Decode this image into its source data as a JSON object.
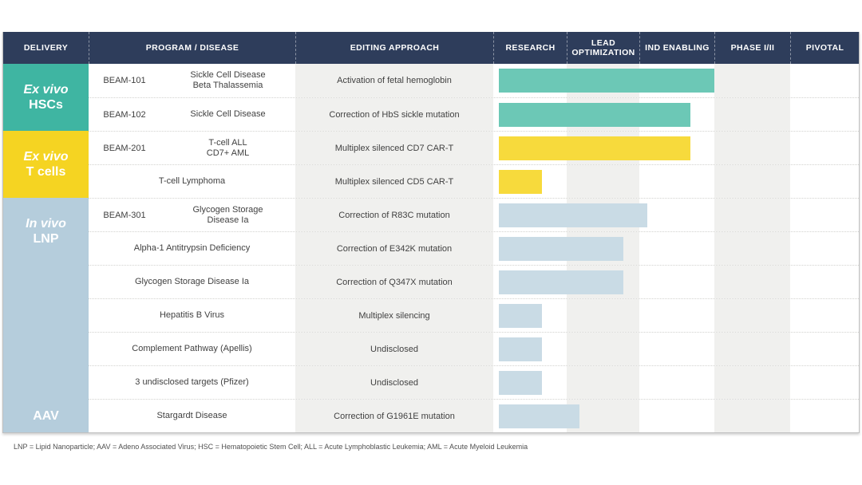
{
  "header": {
    "columns": [
      {
        "key": "delivery",
        "label": "DELIVERY"
      },
      {
        "key": "program-disease",
        "label": "PROGRAM / DISEASE"
      },
      {
        "key": "editing-approach",
        "label": "EDITING APPROACH"
      },
      {
        "key": "research",
        "label": "RESEARCH"
      },
      {
        "key": "lead-optimization",
        "label": "LEAD OPTIMIZATION"
      },
      {
        "key": "ind-enabling",
        "label": "IND ENABLING"
      },
      {
        "key": "phase-1-2",
        "label": "PHASE I/II"
      },
      {
        "key": "pivotal",
        "label": "PIVOTAL"
      }
    ]
  },
  "colors": {
    "navy": "#2e3d5b",
    "teal": "#3fb5a2",
    "teal_bar": "#6cc8b6",
    "yellow": "#f5d422",
    "yellow_bar": "#f7da3c",
    "blue": "#b5cddc",
    "blue_bar": "#c9dbe5",
    "band_gray": "#f0f0ee"
  },
  "delivery_sections": [
    {
      "name": "ex-vivo-hscs",
      "color": "teal",
      "rows": 2,
      "labels": [
        {
          "row_start": 0,
          "row_span": 2,
          "lines": [
            {
              "text": "Ex vivo",
              "italic": true
            },
            {
              "text": "HSCs",
              "italic": false
            }
          ]
        }
      ]
    },
    {
      "name": "ex-vivo-t-cells",
      "color": "yellow",
      "rows": 2,
      "labels": [
        {
          "row_start": 0,
          "row_span": 2,
          "lines": [
            {
              "text": "Ex vivo",
              "italic": true
            },
            {
              "text": "T cells",
              "italic": false
            }
          ]
        }
      ]
    },
    {
      "name": "in-vivo",
      "color": "blue",
      "rows": 7,
      "labels": [
        {
          "row_start": 0,
          "row_span": 2,
          "lines": [
            {
              "text": "In vivo",
              "italic": true
            },
            {
              "text": "LNP",
              "italic": false
            }
          ]
        },
        {
          "row_start": 6,
          "row_span": 1,
          "lines": [
            {
              "text": "AAV",
              "italic": false
            }
          ]
        }
      ]
    }
  ],
  "rows": [
    {
      "program": "BEAM-101",
      "disease_lines": [
        "Sickle Cell Disease",
        "Beta Thalassemia"
      ],
      "editing": "Activation of fetal hemoglobin",
      "group": "teal",
      "progress_pct": 59.9
    },
    {
      "program": "BEAM-102",
      "disease_lines": [
        "Sickle Cell Disease"
      ],
      "editing": "Correction of HbS sickle mutation",
      "group": "teal",
      "progress_pct": 53.2
    },
    {
      "program": "BEAM-201",
      "disease_lines": [
        "T-cell ALL",
        "CD7+ AML"
      ],
      "editing": "Multiplex silenced CD7 CAR-T",
      "group": "yellow",
      "progress_pct": 53.2
    },
    {
      "program": "",
      "disease_lines": [
        "T-cell Lymphoma"
      ],
      "editing": "Multiplex silenced CD5 CAR-T",
      "group": "yellow",
      "progress_pct": 12.0
    },
    {
      "program": "BEAM-301",
      "disease_lines": [
        "Glycogen Storage",
        "Disease Ia"
      ],
      "editing": "Correction of R83C mutation",
      "group": "blue",
      "progress_pct": 41.2
    },
    {
      "program": "",
      "disease_lines": [
        "Alpha-1 Antitrypsin Deficiency"
      ],
      "editing": "Correction of E342K mutation",
      "group": "blue",
      "progress_pct": 34.6
    },
    {
      "program": "",
      "disease_lines": [
        "Glycogen Storage Disease Ia"
      ],
      "editing": "Correction of Q347X mutation",
      "group": "blue",
      "progress_pct": 34.6
    },
    {
      "program": "",
      "disease_lines": [
        "Hepatitis B Virus"
      ],
      "editing": "Multiplex silencing",
      "group": "blue",
      "progress_pct": 12.0
    },
    {
      "program": "",
      "disease_lines": [
        "Complement Pathway (Apellis)"
      ],
      "editing": "Undisclosed",
      "group": "blue",
      "progress_pct": 12.0
    },
    {
      "program": "",
      "disease_lines": [
        "3 undisclosed targets (Pfizer)"
      ],
      "editing": "Undisclosed",
      "group": "blue",
      "progress_pct": 12.0
    },
    {
      "program": "",
      "disease_lines": [
        "Stargardt Disease"
      ],
      "editing": "Correction of G1961E mutation",
      "group": "blue",
      "progress_pct": 22.4
    }
  ],
  "footnote": "LNP = Lipid Nanoparticle; AAV = Adeno Associated Virus; HSC = Hematopoietic Stem Cell; ALL = Acute Lymphoblastic Leukemia; AML = Acute Myeloid Leukemia",
  "chart_data": {
    "type": "gantt",
    "title": "",
    "stages": [
      "Research",
      "Lead Optimization",
      "IND Enabling",
      "Phase I/II",
      "Pivotal"
    ],
    "delivery_groups": [
      {
        "label": "Ex vivo HSCs",
        "row_indices": [
          0,
          1
        ]
      },
      {
        "label": "Ex vivo T cells",
        "row_indices": [
          2,
          3
        ]
      },
      {
        "label": "In vivo LNP",
        "row_indices": [
          4,
          5,
          6,
          7,
          8,
          9
        ]
      },
      {
        "label": "In vivo AAV",
        "row_indices": [
          10
        ]
      }
    ],
    "rows": [
      {
        "program": "BEAM-101",
        "disease": "Sickle Cell Disease / Beta Thalassemia",
        "editing_approach": "Activation of fetal hemoglobin",
        "progress_stage_units": 3.0
      },
      {
        "program": "BEAM-102",
        "disease": "Sickle Cell Disease",
        "editing_approach": "Correction of HbS sickle mutation",
        "progress_stage_units": 2.68
      },
      {
        "program": "BEAM-201",
        "disease": "T-cell ALL / CD7+ AML",
        "editing_approach": "Multiplex silenced CD7 CAR-T",
        "progress_stage_units": 2.68
      },
      {
        "program": "",
        "disease": "T-cell Lymphoma",
        "editing_approach": "Multiplex silenced CD5 CAR-T",
        "progress_stage_units": 0.66
      },
      {
        "program": "BEAM-301",
        "disease": "Glycogen Storage Disease Ia",
        "editing_approach": "Correction of R83C mutation",
        "progress_stage_units": 2.11
      },
      {
        "program": "",
        "disease": "Alpha-1 Antitrypsin Deficiency",
        "editing_approach": "Correction of E342K mutation",
        "progress_stage_units": 1.78
      },
      {
        "program": "",
        "disease": "Glycogen Storage Disease Ia",
        "editing_approach": "Correction of Q347X mutation",
        "progress_stage_units": 1.78
      },
      {
        "program": "",
        "disease": "Hepatitis B Virus",
        "editing_approach": "Multiplex silencing",
        "progress_stage_units": 0.66
      },
      {
        "program": "",
        "disease": "Complement Pathway (Apellis)",
        "editing_approach": "Undisclosed",
        "progress_stage_units": 0.66
      },
      {
        "program": "",
        "disease": "3 undisclosed targets (Pfizer)",
        "editing_approach": "Undisclosed",
        "progress_stage_units": 0.66
      },
      {
        "program": "",
        "disease": "Stargardt Disease",
        "editing_approach": "Correction of G1961E mutation",
        "progress_stage_units": 1.18
      }
    ],
    "axis_note": "Bars start at left edge of Research column; stage column order: Research, Lead Optimization, IND Enabling, Phase I/II, Pivotal"
  }
}
